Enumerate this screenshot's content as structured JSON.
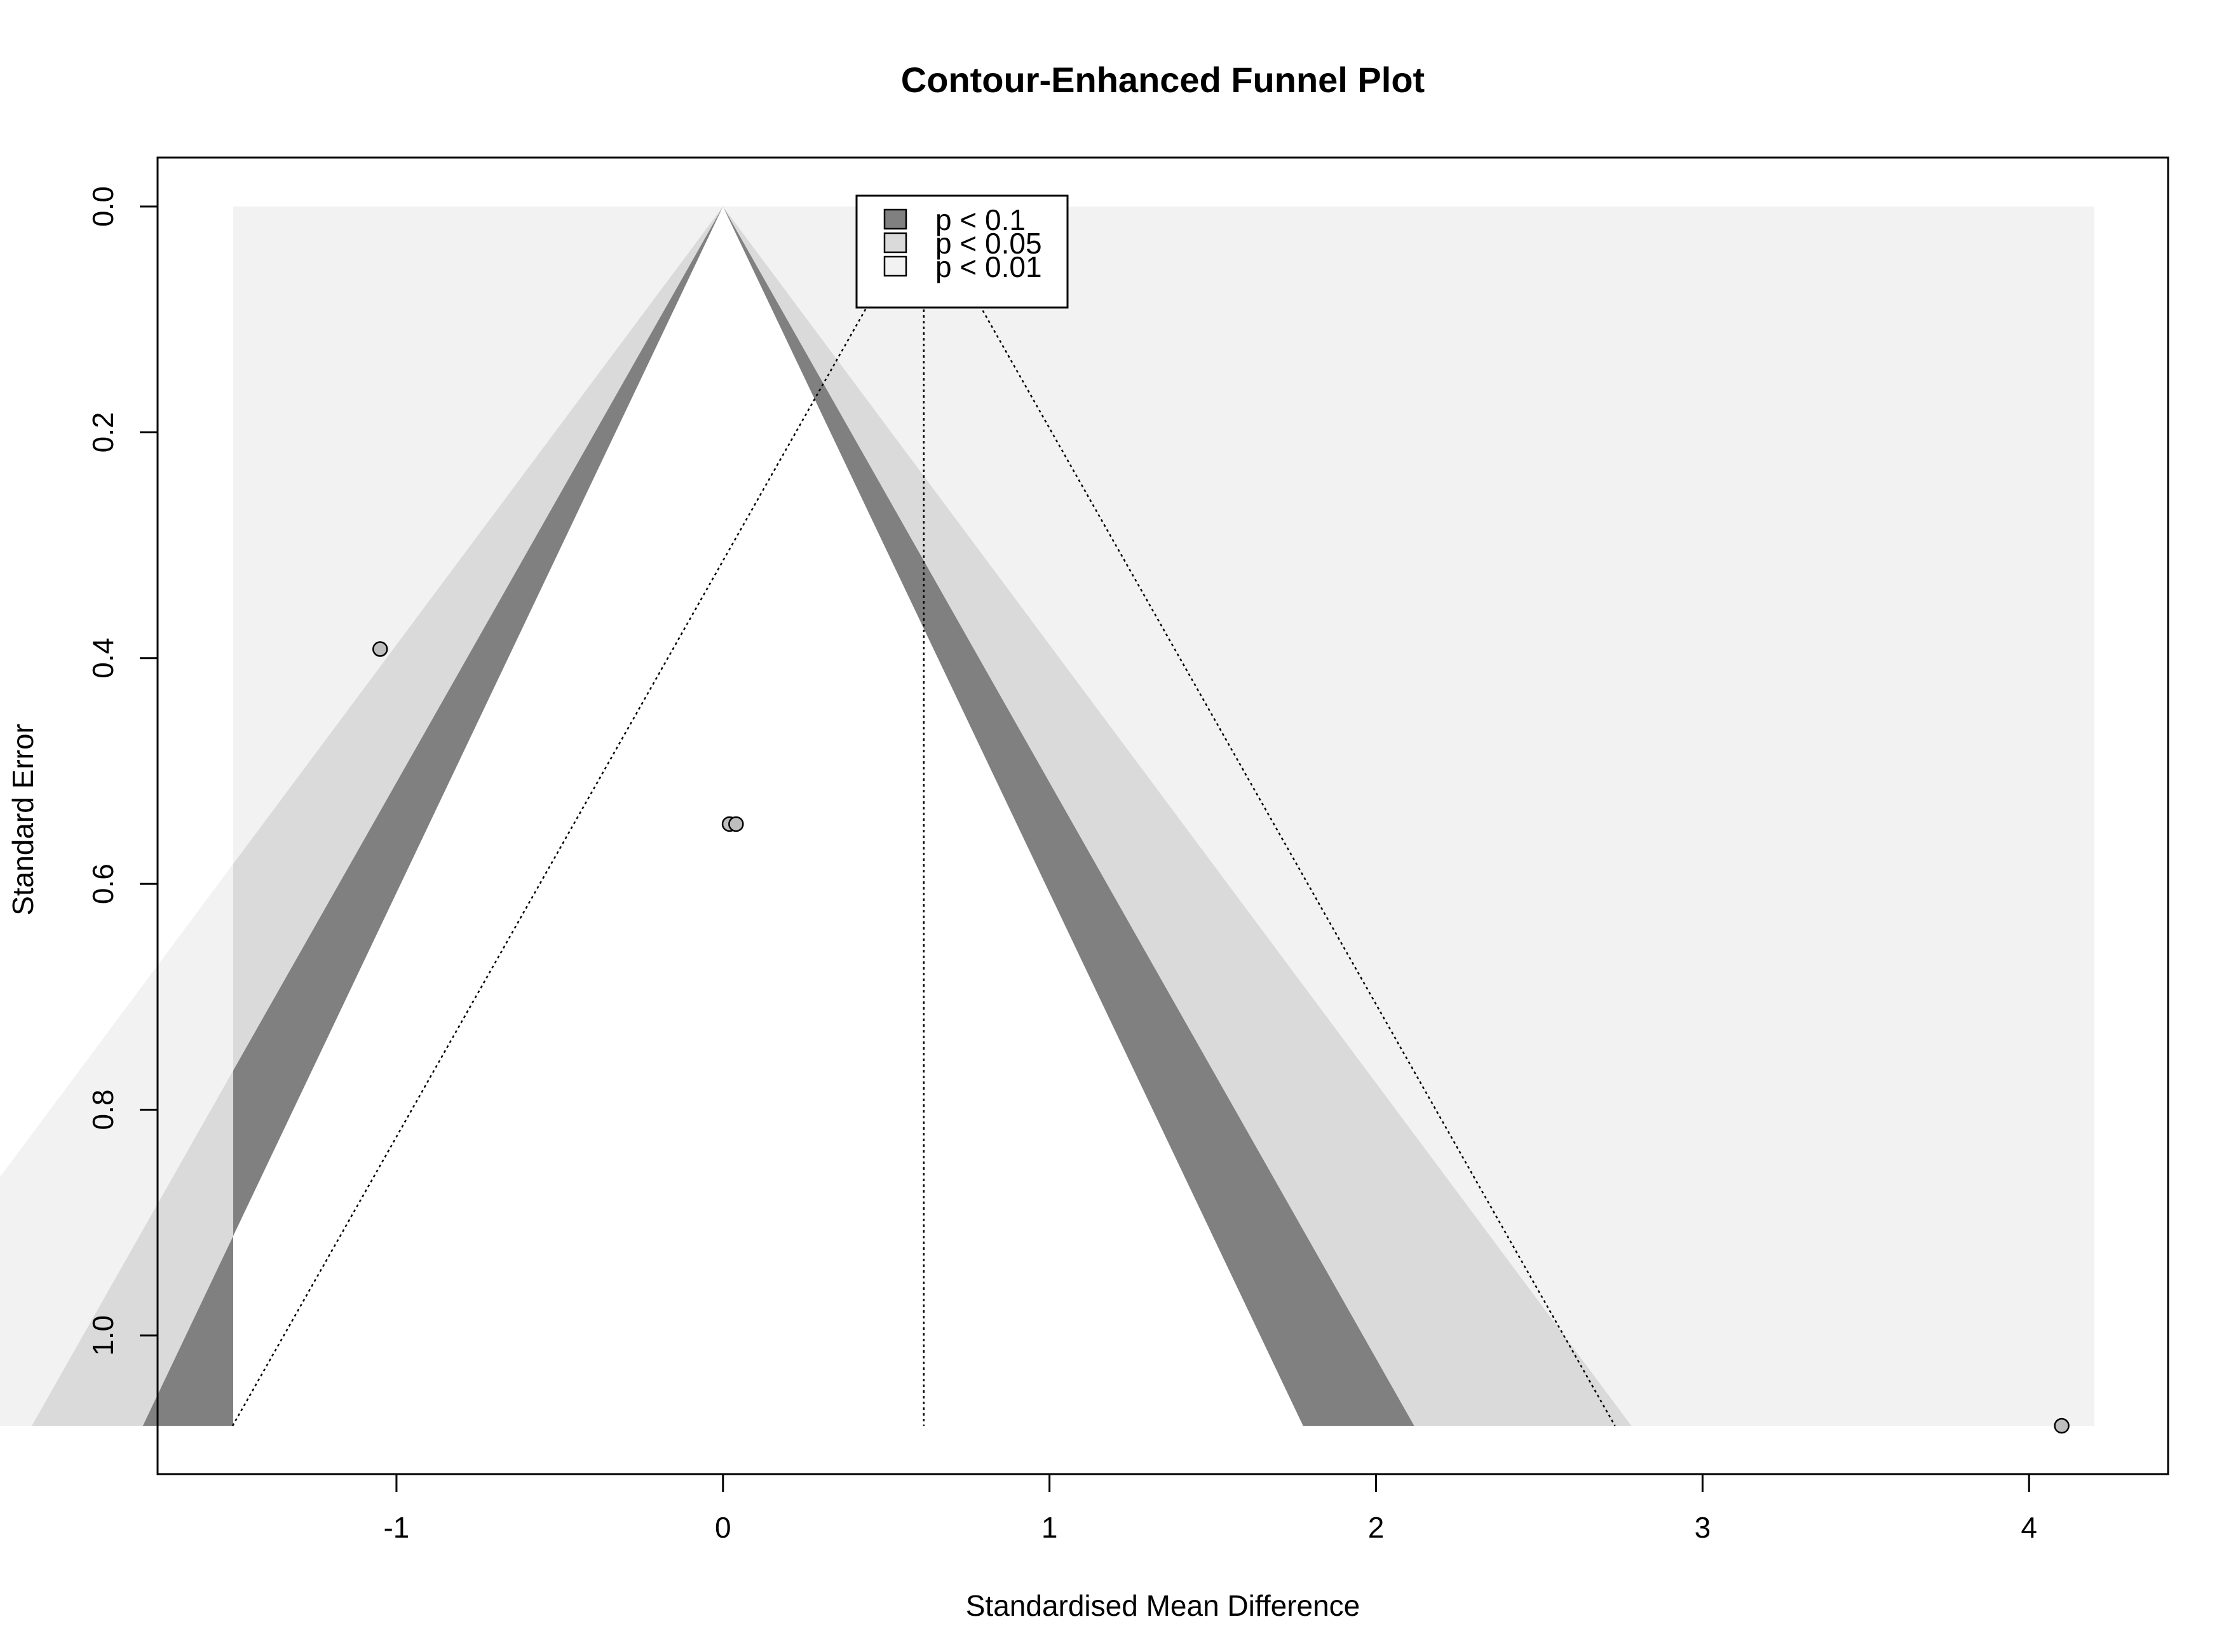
{
  "chart_data": {
    "type": "scatter",
    "title": "Contour-Enhanced Funnel Plot",
    "xlabel": "Standardised Mean Difference",
    "ylabel": "Standard Error",
    "xlim": [
      -1.5,
      4.2
    ],
    "ylim": [
      0,
      1.08
    ],
    "y_reversed": true,
    "x_ticks": [
      -1,
      0,
      1,
      2,
      3,
      4
    ],
    "x_tick_labels": [
      "-1",
      "0",
      "1",
      "2",
      "3",
      "4"
    ],
    "y_ticks": [
      0.0,
      0.2,
      0.4,
      0.6,
      0.8,
      1.0
    ],
    "y_tick_labels": [
      "0.0",
      "0.2",
      "0.4",
      "0.6",
      "0.8",
      "1.0"
    ],
    "contour_center": 0,
    "pooled_estimate": 0.615,
    "contours": [
      {
        "label": "p < 0.1",
        "z": 1.645,
        "color": "#808080"
      },
      {
        "label": "p < 0.05",
        "z": 1.96,
        "color": "#dadada"
      },
      {
        "label": "p < 0.01",
        "z": 2.576,
        "color": "#f2f2f2"
      }
    ],
    "points": [
      {
        "x": -1.05,
        "y": 0.392
      },
      {
        "x": 0.02,
        "y": 0.547
      },
      {
        "x": 0.04,
        "y": 0.547
      },
      {
        "x": 4.1,
        "y": 1.08
      }
    ],
    "legend": {
      "position": "top",
      "entries": [
        "p < 0.1",
        "p < 0.05",
        "p < 0.01"
      ]
    },
    "colors": {
      "background_region": "#f2f2f2",
      "point_fill": "#bebebe",
      "inner_funnel": "#ffffff"
    }
  }
}
